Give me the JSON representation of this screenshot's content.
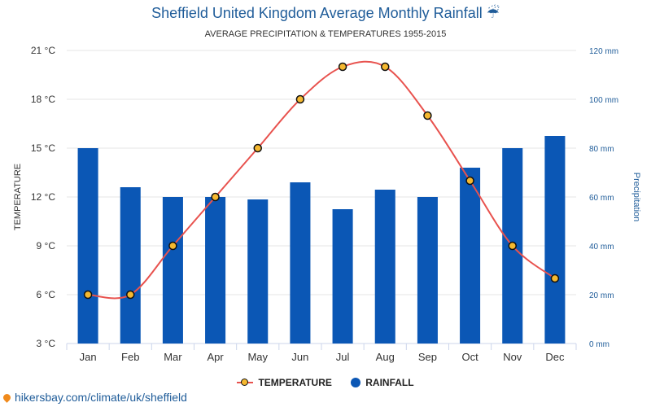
{
  "title": "Sheffield United Kingdom Average Monthly Rainfall ☔",
  "subtitle": "AVERAGE PRECIPITATION & TEMPERATURES 1955-2015",
  "footer_url": "hikersbay.com/climate/uk/sheffield",
  "colors": {
    "bar": "#0b57b5",
    "line": "#e8524e",
    "marker": "#f5b830",
    "title": "#1f5c99"
  },
  "chart_data": {
    "type": "bar",
    "categories": [
      "Jan",
      "Feb",
      "Mar",
      "Apr",
      "May",
      "Jun",
      "Jul",
      "Aug",
      "Sep",
      "Oct",
      "Nov",
      "Dec"
    ],
    "series": [
      {
        "name": "TEMPERATURE",
        "type": "line",
        "axis": "left",
        "values": [
          6,
          6,
          9,
          12,
          15,
          18,
          20,
          20,
          17,
          13,
          9,
          7
        ]
      },
      {
        "name": "RAINFALL",
        "type": "bar",
        "axis": "right",
        "values": [
          80,
          64,
          60,
          60,
          59,
          66,
          55,
          63,
          60,
          72,
          80,
          85
        ]
      }
    ],
    "ylabel_left": "TEMPERATURE",
    "ylabel_right": "Precipitation",
    "ylim_left": [
      3,
      21
    ],
    "ylim_right": [
      0,
      120
    ],
    "yticks_left": [
      "3 °C",
      "6 °C",
      "9 °C",
      "12 °C",
      "15 °C",
      "18 °C",
      "21 °C"
    ],
    "yticks_right": [
      "0 mm",
      "20 mm",
      "40 mm",
      "60 mm",
      "80 mm",
      "100 mm",
      "120 mm"
    ],
    "grid": true,
    "legend_position": "bottom"
  }
}
